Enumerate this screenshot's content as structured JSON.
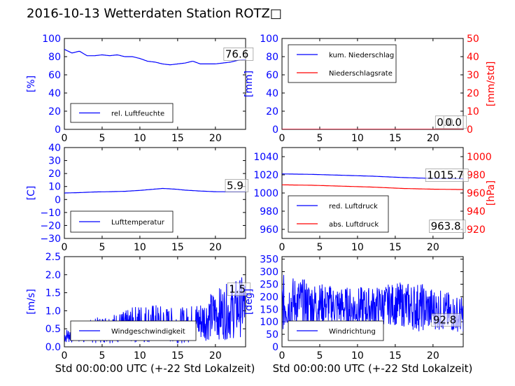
{
  "figure": {
    "title": "2016-10-13 Wetterdaten Station ROTZ□"
  },
  "colors": {
    "blue": "#0000ff",
    "red": "#ff0000",
    "black": "#000000",
    "box_edge": "#7f7f7f"
  },
  "chart_data": [
    {
      "id": "humidity",
      "type": "line",
      "ylabel": "[%]",
      "xlabel": "",
      "xlim": [
        0,
        24
      ],
      "ylim": [
        0,
        100
      ],
      "xticks": [
        0,
        5,
        10,
        15,
        20
      ],
      "yticks": [
        0,
        20,
        40,
        60,
        80,
        100
      ],
      "grid": false,
      "legend": "lower-left",
      "series": [
        {
          "name": "rel. Luftfeuchte",
          "color": "#0000ff",
          "style": "line",
          "x": [
            0,
            1,
            2,
            3,
            4,
            5,
            6,
            7,
            8,
            9,
            10,
            11,
            12,
            13,
            14,
            15,
            16,
            17,
            18,
            19,
            20,
            21,
            22,
            23,
            24
          ],
          "y": [
            88,
            84,
            86,
            81,
            81,
            82,
            81,
            82,
            80,
            80,
            78,
            75,
            74,
            72,
            71,
            72,
            73,
            75,
            72,
            72,
            72,
            73,
            74,
            76,
            77
          ]
        }
      ],
      "annotation": {
        "text": "76.6",
        "x": 21.3,
        "y": 79
      }
    },
    {
      "id": "precip",
      "type": "line",
      "ylabel": "[mm]",
      "ylabel_right": "[mm/std]",
      "xlabel": "",
      "xlim": [
        0,
        24
      ],
      "ylim": [
        0,
        100
      ],
      "ylim_right": [
        0,
        50
      ],
      "xticks": [
        0,
        5,
        10,
        15,
        20
      ],
      "yticks": [
        0,
        20,
        40,
        60,
        80,
        100
      ],
      "yticks_right": [
        0,
        10,
        20,
        30,
        40,
        50
      ],
      "grid": false,
      "legend": "upper-left",
      "series": [
        {
          "name": "kum. Niederschlag",
          "color": "#0000ff",
          "style": "line",
          "x": [
            0,
            24
          ],
          "y": [
            0,
            0
          ]
        },
        {
          "name": "Niederschlagsrate",
          "color": "#ff0000",
          "style": "line",
          "axis": "right",
          "x": [
            0,
            24
          ],
          "y": [
            0,
            0
          ]
        }
      ],
      "annotations": [
        {
          "text": "0.0",
          "x": 20.5,
          "y": 4
        },
        {
          "text": "0.0",
          "x": 21.6,
          "y": 4
        }
      ]
    },
    {
      "id": "temperature",
      "type": "line",
      "ylabel": "[C]",
      "xlabel": "",
      "xlim": [
        0,
        24
      ],
      "ylim": [
        -30,
        40
      ],
      "xticks": [
        0,
        5,
        10,
        15,
        20
      ],
      "yticks": [
        -30,
        -20,
        -10,
        0,
        10,
        20,
        30,
        40
      ],
      "grid": false,
      "legend": "lower-left",
      "series": [
        {
          "name": "Lufttemperatur",
          "color": "#0000ff",
          "style": "line",
          "x": [
            0,
            2,
            4,
            6,
            8,
            10,
            11,
            12,
            13,
            14,
            15,
            16,
            18,
            20,
            22,
            24
          ],
          "y": [
            5,
            5.3,
            5.8,
            6,
            6.3,
            7,
            7.5,
            8,
            8.5,
            8.2,
            7.8,
            7.2,
            6.5,
            6,
            5.9,
            5.9
          ]
        }
      ],
      "annotation": {
        "text": "5.9",
        "x": 21.5,
        "y": 8
      }
    },
    {
      "id": "pressure",
      "type": "line",
      "ylabel": "",
      "ylabel_right": "[hPa]",
      "xlabel": "",
      "xlim": [
        0,
        24
      ],
      "ylim": [
        950,
        1050
      ],
      "ylim_right": [
        910,
        1010
      ],
      "xticks": [
        0,
        5,
        10,
        15,
        20
      ],
      "yticks": [
        960,
        980,
        1000,
        1020,
        1040
      ],
      "yticks_right": [
        920,
        940,
        960,
        980,
        1000
      ],
      "grid": false,
      "legend": "lower-left",
      "series": [
        {
          "name": "red. Luftdruck",
          "color": "#0000ff",
          "style": "line",
          "x": [
            0,
            4,
            8,
            12,
            16,
            20,
            24
          ],
          "y": [
            1021,
            1020.5,
            1019.5,
            1018.5,
            1017,
            1016,
            1015.7
          ]
        },
        {
          "name": "abs. Luftdruck",
          "color": "#ff0000",
          "style": "line",
          "axis": "right",
          "x": [
            0,
            4,
            8,
            12,
            16,
            20,
            24
          ],
          "y": [
            969,
            968.5,
            967.5,
            966.5,
            965,
            964.2,
            963.8
          ]
        }
      ],
      "annotations": [
        {
          "text": "1015.7",
          "x": 19.2,
          "y": 1015.7
        },
        {
          "text": "963.8",
          "x": 19.7,
          "y": 959.5
        }
      ]
    },
    {
      "id": "windspeed",
      "type": "line",
      "ylabel": "[m/s]",
      "xlabel": "Std 00:00:00 UTC (+-22 Std Lokalzeit)",
      "xlim": [
        0,
        24
      ],
      "ylim": [
        0,
        2.5
      ],
      "xticks": [
        0,
        5,
        10,
        15,
        20
      ],
      "yticks": [
        0.0,
        0.5,
        1.0,
        1.5,
        2.0,
        2.5
      ],
      "grid": false,
      "legend": "lower-left",
      "series": [
        {
          "name": "Windgeschwindigkeit",
          "color": "#0000ff",
          "style": "noisy",
          "x": [
            0,
            2,
            4,
            6,
            8,
            10,
            12,
            14,
            16,
            18,
            20,
            22,
            24
          ],
          "y_low": [
            0.1,
            0.1,
            0.1,
            0.1,
            0.1,
            0.1,
            0.1,
            0.1,
            0.1,
            0.15,
            0.2,
            0.2,
            0.3
          ],
          "y_high": [
            0.5,
            0.6,
            0.8,
            0.9,
            1.0,
            1.2,
            1.2,
            1.1,
            1.1,
            1.3,
            1.6,
            1.8,
            2.0
          ],
          "y_mid": [
            0.3,
            0.4,
            0.5,
            0.6,
            0.6,
            0.7,
            0.6,
            0.6,
            0.6,
            0.7,
            0.9,
            1.0,
            1.2
          ]
        }
      ],
      "annotation": {
        "text": "1.5",
        "x": 21.8,
        "y": 1.5
      }
    },
    {
      "id": "winddir",
      "type": "line",
      "ylabel": "[deg]",
      "xlabel": "Std 00:00:00 UTC (+-22 Std Lokalzeit)",
      "xlim": [
        0,
        24
      ],
      "ylim": [
        0,
        360
      ],
      "xticks": [
        0,
        5,
        10,
        15,
        20
      ],
      "yticks": [
        0,
        50,
        100,
        150,
        200,
        250,
        300,
        350
      ],
      "grid": false,
      "legend": "lower-left",
      "series": [
        {
          "name": "Windrichtung",
          "color": "#0000ff",
          "style": "noisy",
          "x": [
            0,
            2,
            4,
            6,
            8,
            10,
            12,
            14,
            16,
            18,
            20,
            22,
            24
          ],
          "y_low": [
            60,
            80,
            80,
            90,
            80,
            70,
            80,
            90,
            80,
            60,
            70,
            60,
            60
          ],
          "y_high": [
            290,
            280,
            260,
            250,
            240,
            240,
            240,
            250,
            260,
            260,
            240,
            220,
            200
          ],
          "y_mid": [
            170,
            180,
            170,
            170,
            160,
            150,
            160,
            170,
            160,
            150,
            140,
            120,
            110
          ]
        }
      ],
      "annotation": {
        "text": "92.8",
        "x": 20,
        "y": 92.8
      }
    }
  ]
}
